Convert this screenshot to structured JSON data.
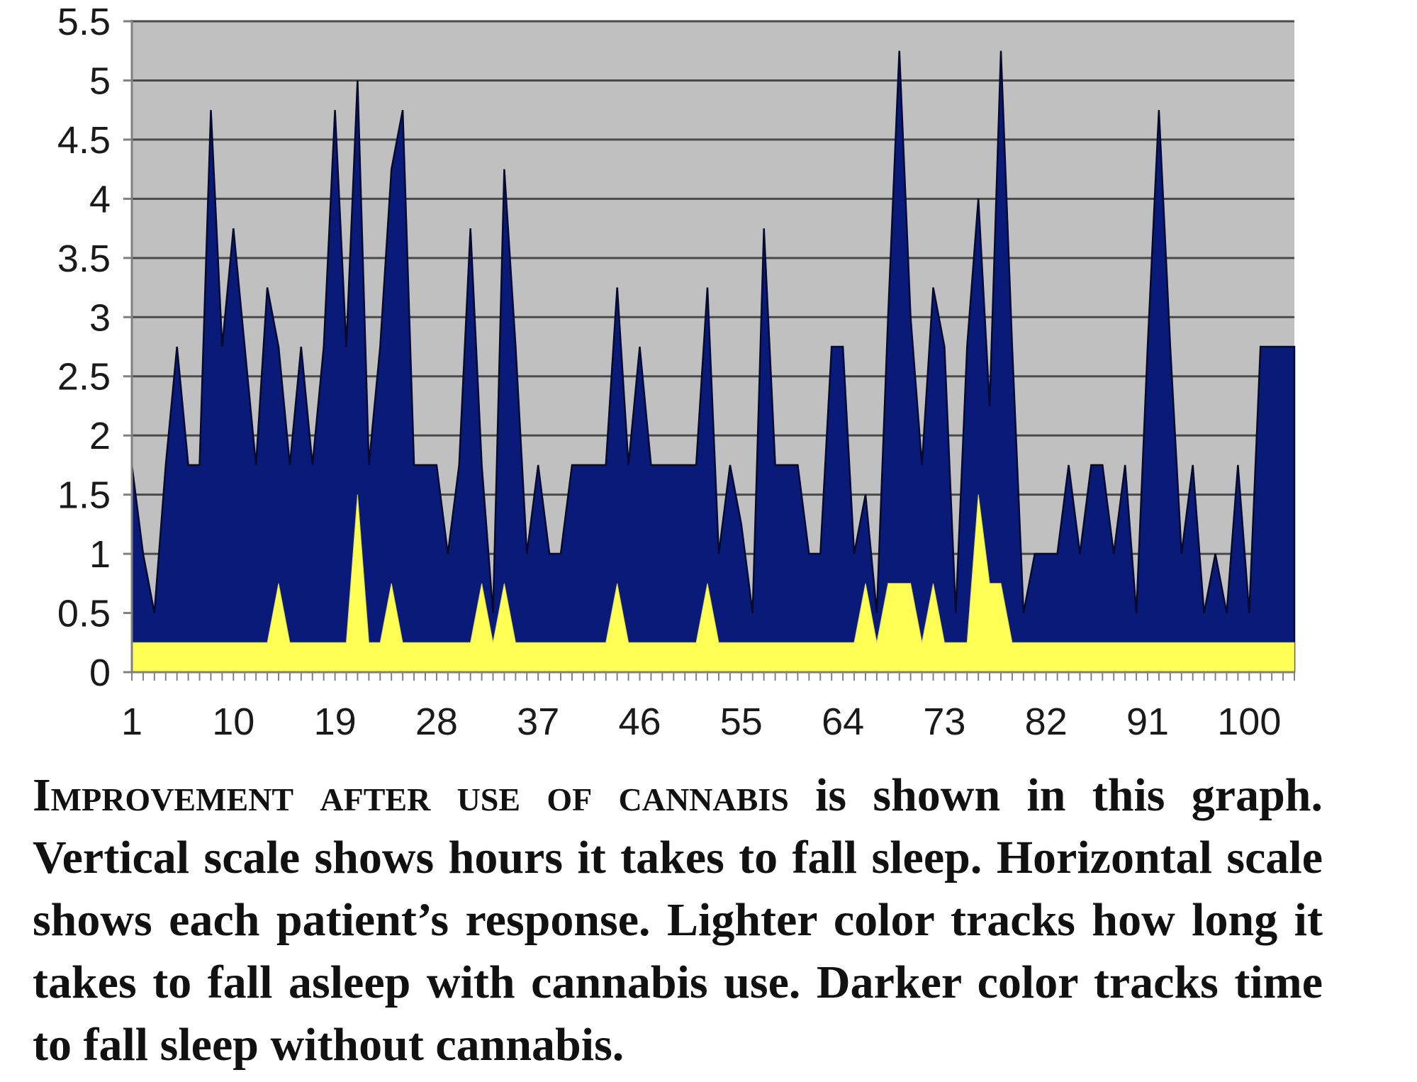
{
  "chart_data": {
    "type": "area",
    "title": "",
    "xlabel": "",
    "ylabel": "",
    "ylim": [
      0,
      5.5
    ],
    "y_ticks": [
      "0",
      "0.5",
      "1",
      "1.5",
      "2",
      "2.5",
      "3",
      "3.5",
      "4",
      "4.5",
      "5",
      "5.5"
    ],
    "x_tick_labels": [
      "1",
      "10",
      "19",
      "28",
      "37",
      "46",
      "55",
      "64",
      "73",
      "82",
      "91",
      "100"
    ],
    "x_tick_values": [
      1,
      10,
      19,
      28,
      37,
      46,
      55,
      64,
      73,
      82,
      91,
      100
    ],
    "xlim": [
      1,
      104
    ],
    "grid": true,
    "background_color": "#c0c0c0",
    "series": [
      {
        "color": "#0a1a78",
        "x": [
          1,
          2,
          3,
          4,
          5,
          6,
          7,
          8,
          9,
          10,
          11,
          12,
          13,
          14,
          15,
          16,
          17,
          18,
          19,
          20,
          21,
          22,
          23,
          24,
          25,
          26,
          27,
          28,
          29,
          30,
          31,
          32,
          33,
          34,
          35,
          36,
          37,
          38,
          39,
          40,
          41,
          42,
          43,
          44,
          45,
          46,
          47,
          48,
          49,
          50,
          51,
          52,
          53,
          54,
          55,
          56,
          57,
          58,
          59,
          60,
          61,
          62,
          63,
          64,
          65,
          66,
          67,
          68,
          69,
          70,
          71,
          72,
          73,
          74,
          75,
          76,
          77,
          78,
          79,
          80,
          81,
          82,
          83,
          84,
          85,
          86,
          87,
          88,
          89,
          90,
          91,
          92,
          93,
          94,
          95,
          96,
          97,
          98,
          99,
          100,
          101,
          102,
          103,
          104
        ],
        "values": [
          1.75,
          1,
          0.5,
          1.75,
          2.75,
          1.75,
          1.75,
          4.75,
          2.75,
          3.75,
          2.75,
          1.75,
          3.25,
          2.75,
          1.75,
          2.75,
          1.75,
          2.75,
          4.75,
          2.75,
          5,
          1.75,
          2.75,
          4.25,
          4.75,
          1.75,
          1.75,
          1.75,
          1,
          1.75,
          3.75,
          1.75,
          0.5,
          4.25,
          2.75,
          1,
          1.75,
          1,
          1,
          1.75,
          1.75,
          1.75,
          1.75,
          3.25,
          1.75,
          2.75,
          1.75,
          1.75,
          1.75,
          1.75,
          1.75,
          3.25,
          1,
          1.75,
          1.25,
          0.5,
          3.75,
          1.75,
          1.75,
          1.75,
          1,
          1,
          2.75,
          2.75,
          1,
          1.5,
          0.5,
          3,
          5.25,
          3,
          1.75,
          3.25,
          2.75,
          0.5,
          2.75,
          4,
          2.25,
          5.25,
          2.75,
          0.5,
          1,
          1,
          1,
          1.75,
          1,
          1.75,
          1.75,
          1,
          1.75,
          0.5,
          2.75,
          4.75,
          2.75,
          1,
          1.75,
          0.5,
          1,
          0.5,
          1.75,
          0.5,
          2.75,
          2.75,
          2.75,
          2.75
        ]
      },
      {
        "color": "#ffff55",
        "x": [
          1,
          2,
          3,
          4,
          5,
          6,
          7,
          8,
          9,
          10,
          11,
          12,
          13,
          14,
          15,
          16,
          17,
          18,
          19,
          20,
          21,
          22,
          23,
          24,
          25,
          26,
          27,
          28,
          29,
          30,
          31,
          32,
          33,
          34,
          35,
          36,
          37,
          38,
          39,
          40,
          41,
          42,
          43,
          44,
          45,
          46,
          47,
          48,
          49,
          50,
          51,
          52,
          53,
          54,
          55,
          56,
          57,
          58,
          59,
          60,
          61,
          62,
          63,
          64,
          65,
          66,
          67,
          68,
          69,
          70,
          71,
          72,
          73,
          74,
          75,
          76,
          77,
          78,
          79,
          80,
          81,
          82,
          83,
          84,
          85,
          86,
          87,
          88,
          89,
          90,
          91,
          92,
          93,
          94,
          95,
          96,
          97,
          98,
          99,
          100,
          101,
          102,
          103,
          104
        ],
        "values": [
          0.25,
          0.25,
          0.25,
          0.25,
          0.25,
          0.25,
          0.25,
          0.25,
          0.25,
          0.25,
          0.25,
          0.25,
          0.25,
          0.75,
          0.25,
          0.25,
          0.25,
          0.25,
          0.25,
          0.25,
          1.5,
          0.25,
          0.25,
          0.75,
          0.25,
          0.25,
          0.25,
          0.25,
          0.25,
          0.25,
          0.25,
          0.75,
          0.25,
          0.75,
          0.25,
          0.25,
          0.25,
          0.25,
          0.25,
          0.25,
          0.25,
          0.25,
          0.25,
          0.75,
          0.25,
          0.25,
          0.25,
          0.25,
          0.25,
          0.25,
          0.25,
          0.75,
          0.25,
          0.25,
          0.25,
          0.25,
          0.25,
          0.25,
          0.25,
          0.25,
          0.25,
          0.25,
          0.25,
          0.25,
          0.25,
          0.75,
          0.25,
          0.75,
          0.75,
          0.75,
          0.25,
          0.75,
          0.25,
          0.25,
          0.25,
          1.5,
          0.75,
          0.75,
          0.25,
          0.25,
          0.25,
          0.25,
          0.25,
          0.25,
          0.25,
          0.25,
          0.25,
          0.25,
          0.25,
          0.25,
          0.25,
          0.25,
          0.25,
          0.25,
          0.25,
          0.25,
          0.25,
          0.25,
          0.25,
          0.25,
          0.25,
          0.25,
          0.25,
          0.25
        ]
      }
    ]
  },
  "caption": {
    "lead": "Improvement after use of cannabis",
    "text": " is shown in this graph. Vertical scale shows hours it takes to fall sleep. Horizontal scale shows each patient’s response. Lighter color tracks how long it takes to fall asleep with cannabis  use. Darker color tracks time to fall sleep without cannabis."
  }
}
